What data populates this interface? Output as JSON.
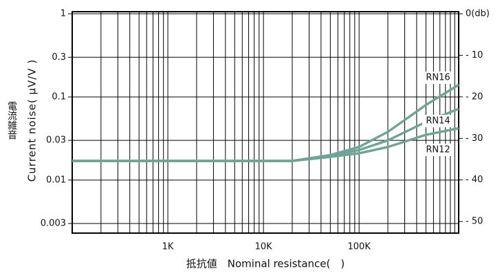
{
  "chart_data": {
    "type": "line",
    "x_label": "抵抗値　Nominal resistance(　)",
    "y_label": "Current noise( μV/V )",
    "y_label_jp": "電流雑音",
    "log_x": true,
    "log_y": true,
    "grid": true,
    "xlim": [
      100,
      1100000
    ],
    "xticks": [
      {
        "value": 1000,
        "label": "1K"
      },
      {
        "value": 10000,
        "label": "10K"
      },
      {
        "value": 100000,
        "label": "100K"
      }
    ],
    "minor_xticks": [
      200,
      300,
      400,
      500,
      600,
      700,
      800,
      900,
      2000,
      3000,
      4000,
      5000,
      6000,
      7000,
      8000,
      9000,
      20000,
      30000,
      40000,
      50000,
      60000,
      70000,
      80000,
      90000,
      200000,
      300000,
      400000,
      500000,
      600000,
      700000,
      800000,
      900000,
      1000000
    ],
    "ylim": [
      0.0023,
      1.06
    ],
    "yticks": [
      1,
      0.3,
      0.1,
      0.03,
      0.01,
      0.003
    ],
    "y2lim": [
      0.5,
      -52.8
    ],
    "y2ticks": [
      {
        "value": 0,
        "label": "0(db)"
      },
      {
        "value": -10,
        "label": "- 10"
      },
      {
        "value": -20,
        "label": "- 20"
      },
      {
        "value": -30,
        "label": "- 30"
      },
      {
        "value": -40,
        "label": "- 40"
      },
      {
        "value": -50,
        "label": "- 50"
      }
    ],
    "x": [
      100,
      1000,
      10000,
      20000,
      50000,
      100000,
      200000,
      500000,
      1100000
    ],
    "series": [
      {
        "name": "RN16",
        "color": "#6fa596",
        "values": [
          0.017,
          0.017,
          0.017,
          0.017,
          0.02,
          0.025,
          0.038,
          0.08,
          0.14
        ]
      },
      {
        "name": "RN14",
        "color": "#6fa596",
        "values": [
          0.017,
          0.017,
          0.017,
          0.017,
          0.0195,
          0.023,
          0.03,
          0.05,
          0.072
        ]
      },
      {
        "name": "RN12",
        "color": "#6fa596",
        "values": [
          0.017,
          0.017,
          0.017,
          0.017,
          0.019,
          0.021,
          0.025,
          0.035,
          0.042
        ]
      }
    ]
  }
}
